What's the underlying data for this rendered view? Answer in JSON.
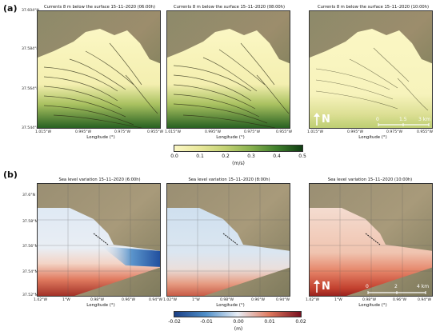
{
  "panel_a": {
    "label": "(a)",
    "maps": [
      {
        "title": "Currents 8 m below the surface 15–11–2020 (06:00h)"
      },
      {
        "title": "Currents 8 m below the surface 15–11–2020 (08:00h)"
      },
      {
        "title": "Currents 8 m below the surface 15–11–2020 (10:00h)"
      }
    ],
    "y_ticks": [
      "37.604°N",
      "37.584°N",
      "37.564°N",
      "37.544°N"
    ],
    "x_ticks": [
      "1.015°W",
      "0.995°W",
      "0.975°W",
      "0.955°W"
    ],
    "xlabel": "Longitude (°)",
    "north_label": "N",
    "scale_labels": [
      "0",
      "1.5",
      "3 km"
    ],
    "colorbar": {
      "ticks": [
        "0.0",
        "0.1",
        "0.2",
        "0.3",
        "0.4",
        "0.5"
      ],
      "unit": "(m/s)",
      "colors": [
        "#fbf7c4",
        "#e8e79a",
        "#c2d173",
        "#87b04e",
        "#3f7f2c",
        "#0f3d12"
      ]
    }
  },
  "panel_b": {
    "label": "(b)",
    "maps": [
      {
        "title": "Sea level variation 15–11–2020 (6:00h)"
      },
      {
        "title": "Sea level variation 15–11–2020 (8:00h)"
      },
      {
        "title": "Sea level variation 15–11–2020 (10:00h)"
      }
    ],
    "y_ticks": [
      "37.6°N",
      "37.58°N",
      "37.56°N",
      "37.54°N",
      "37.52°N"
    ],
    "x_ticks": [
      "1.02°W",
      "1°W",
      "0.98°W",
      "0.96°W",
      "0.94°W"
    ],
    "xlabel": "Longitude (°)",
    "north_label": "N",
    "scale_labels": [
      "0",
      "2",
      "4 km"
    ],
    "colorbar": {
      "ticks": [
        "-0.02",
        "-0.01",
        "0.00",
        "0.01",
        "0.02"
      ],
      "unit": "(m)",
      "colors": [
        "#1a3f86",
        "#4f8fc9",
        "#e8eef6",
        "#e07a5f",
        "#7a0f1f"
      ]
    }
  }
}
